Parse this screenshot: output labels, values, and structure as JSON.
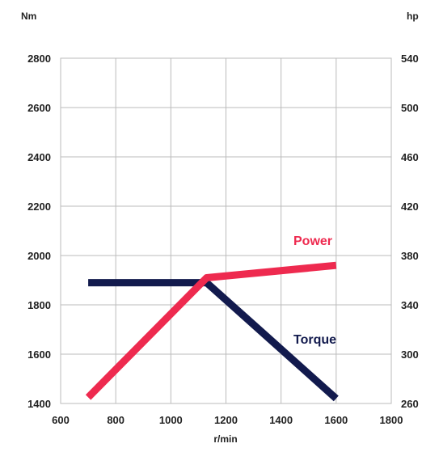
{
  "chart_data": {
    "type": "line",
    "left_axis_unit": "Nm",
    "right_axis_unit": "hp",
    "xlabel": "r/min",
    "xlim": [
      600,
      1800
    ],
    "x_ticks": [
      "600",
      "800",
      "1000",
      "1200",
      "1400",
      "1600",
      "1800"
    ],
    "ylim_left": [
      1400,
      2800
    ],
    "y_ticks_left": [
      "2800",
      "2600",
      "2400",
      "2200",
      "2000",
      "1800",
      "1600",
      "1400"
    ],
    "ylim_right": [
      260,
      540
    ],
    "y_ticks_right": [
      "540",
      "500",
      "460",
      "420",
      "380",
      "340",
      "300",
      "260"
    ],
    "grid": true,
    "series": [
      {
        "name": "Power",
        "axis": "right",
        "color": "#ee2a4f",
        "points": [
          [
            700,
            265
          ],
          [
            1130,
            362
          ],
          [
            1600,
            372
          ]
        ]
      },
      {
        "name": "Torque",
        "axis": "left",
        "color": "#121a4d",
        "points": [
          [
            700,
            1890
          ],
          [
            1130,
            1890
          ],
          [
            1350,
            1670
          ],
          [
            1600,
            1420
          ]
        ]
      }
    ]
  }
}
